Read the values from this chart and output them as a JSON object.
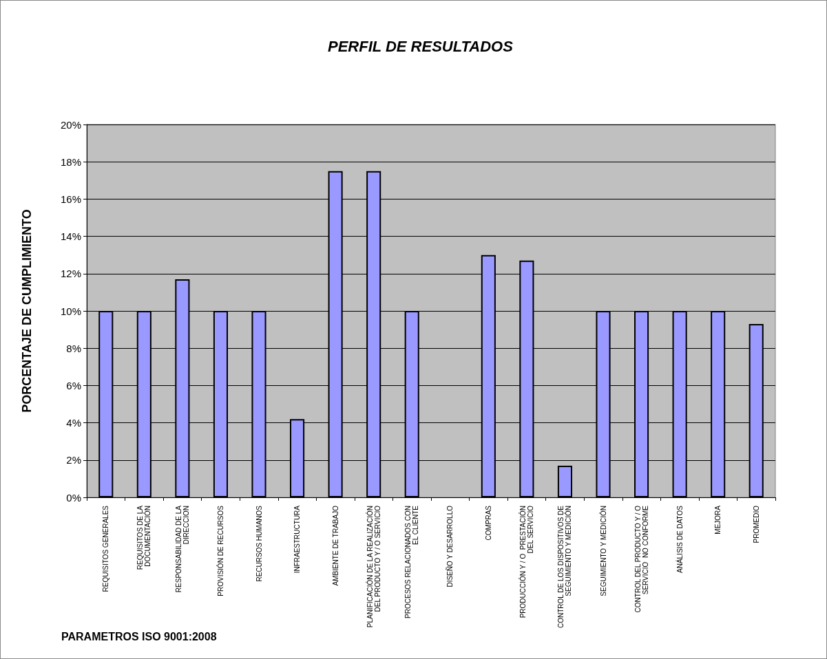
{
  "chart_data": {
    "type": "bar",
    "title": "PERFIL DE RESULTADOS",
    "ylabel": "PORCENTAJE DE CUMPLIMIENTO",
    "annotations": [
      "PARAMETROS  ISO 9001:2008"
    ],
    "categories": [
      "REQUISITOS GENERALES",
      "REQUISITOS DE LA\nDOCUMENTACIÓN",
      "RESPONSABILIDAD DE LA\nDIRECCION",
      "PROVISIÓN DE RECURSOS",
      "RECURSOS HUMANOS",
      "INFRAESTRUCTURA",
      "AMBIENTE DE TRABAJO",
      "PLANIFICACIÓN DE LA REALIZACIÓN\nDEL PRODUCTO Y / O SERVICIO",
      "PROCESOS RELACIONADOS CON\nEL CLIENTE",
      "DISEÑO Y DESARROLLO",
      "COMPRAS",
      "PRODUCCIÓN Y / O  PRESTACIÓN\nDEL SERVICIO",
      "CONTROL DE LOS DISPOSITIVOS DE\nSEGUIMIENTO Y MEDICIÓN",
      "SEGUIMIENTO Y MEDICIÓN",
      "CONTROL DEL PRODUCTO Y / O\nSERVICIO  NO CONFORME",
      "ANÁLISIS DE DATOS",
      "MEJORA",
      "PROMEDIO"
    ],
    "values": [
      10,
      10,
      11.7,
      10,
      10,
      4.2,
      17.5,
      17.5,
      10,
      0,
      13.0,
      12.7,
      1.7,
      10,
      10,
      10,
      10,
      9.3
    ],
    "color": "#9999ff",
    "ylim": [
      0,
      20
    ],
    "yticks": [
      {
        "value": 0,
        "label": "0%"
      },
      {
        "value": 2,
        "label": "2%"
      },
      {
        "value": 4,
        "label": "4%"
      },
      {
        "value": 6,
        "label": "6%"
      },
      {
        "value": 8,
        "label": "8%"
      },
      {
        "value": 10,
        "label": "10%"
      },
      {
        "value": 12,
        "label": "12%"
      },
      {
        "value": 14,
        "label": "14%"
      },
      {
        "value": 16,
        "label": "16%"
      },
      {
        "value": 18,
        "label": "18%"
      },
      {
        "value": 20,
        "label": "20%"
      }
    ],
    "grid": "y"
  }
}
